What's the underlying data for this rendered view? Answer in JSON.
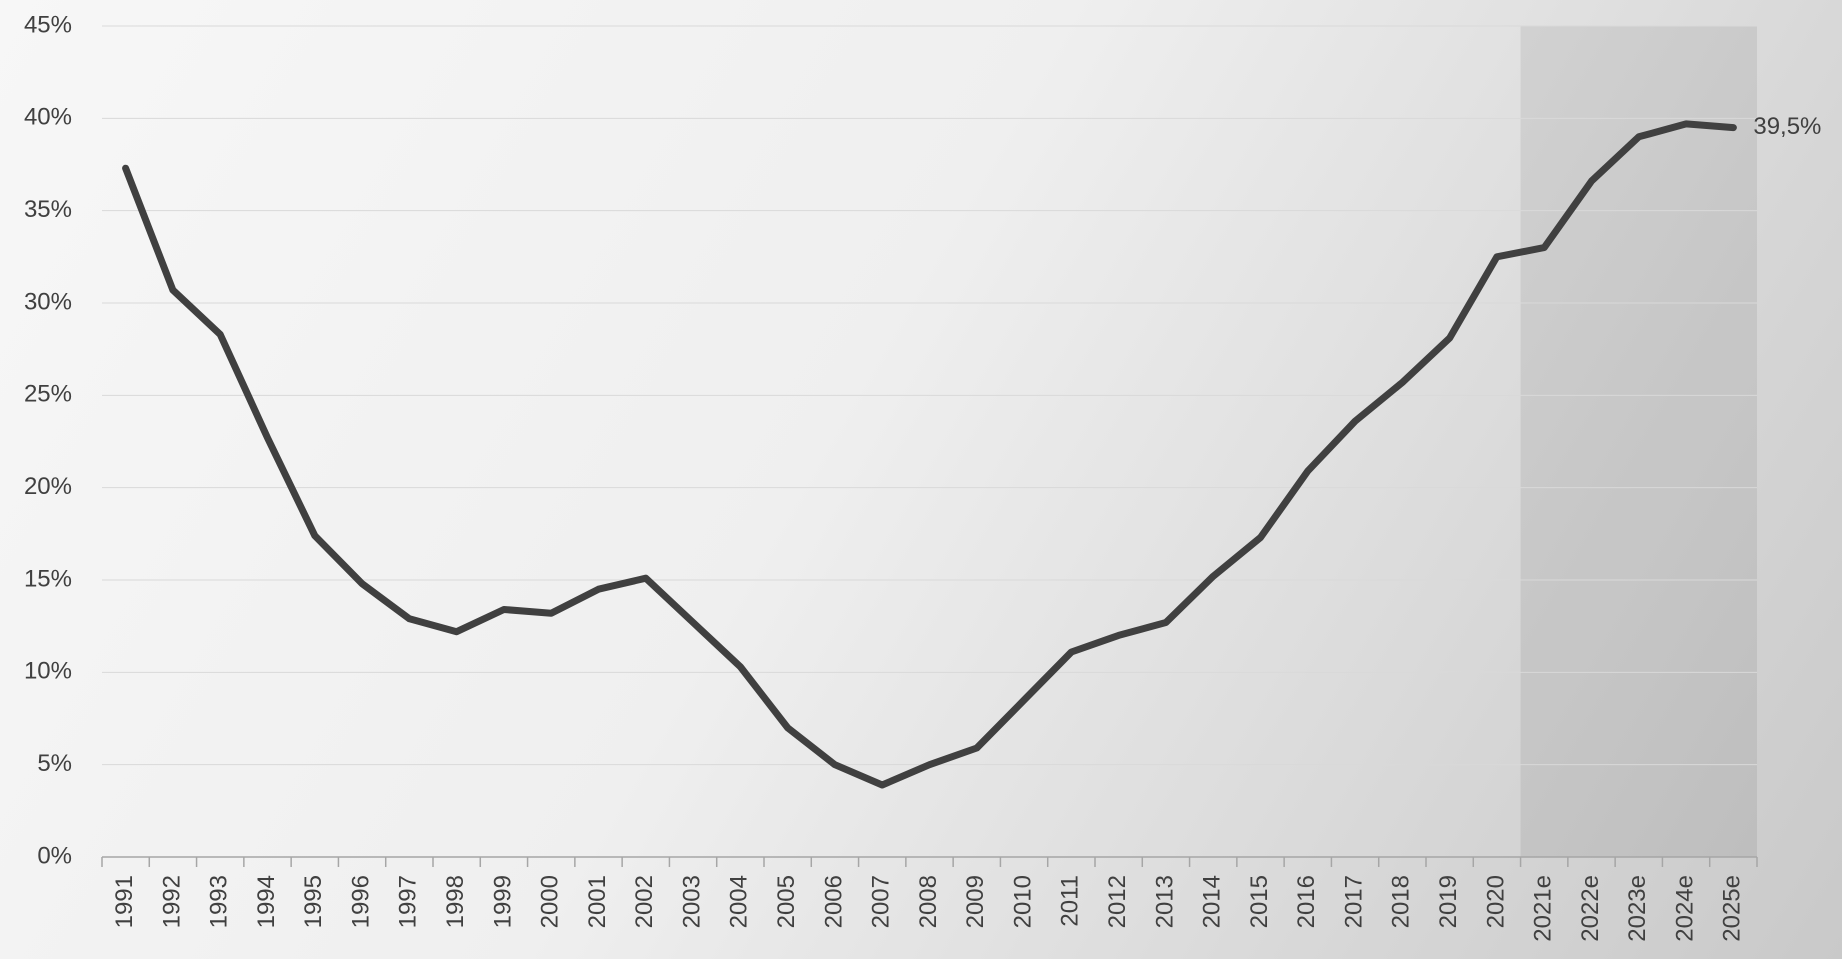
{
  "chart_data": {
    "type": "line",
    "categories": [
      "1991",
      "1992",
      "1993",
      "1994",
      "1995",
      "1996",
      "1997",
      "1998",
      "1999",
      "2000",
      "2001",
      "2002",
      "2003",
      "2004",
      "2005",
      "2006",
      "2007",
      "2008",
      "2009",
      "2010",
      "2011",
      "2012",
      "2013",
      "2014",
      "2015",
      "2016",
      "2017",
      "2018",
      "2019",
      "2020",
      "2021e",
      "2022e",
      "2023e",
      "2024e",
      "2025e"
    ],
    "series": [
      {
        "color": "#404040",
        "values": [
          37.3,
          30.7,
          28.3,
          22.7,
          17.4,
          14.8,
          12.9,
          12.2,
          13.4,
          13.2,
          14.5,
          15.1,
          12.7,
          10.3,
          7.0,
          5.0,
          3.9,
          5.0,
          5.9,
          8.5,
          11.1,
          12.0,
          12.7,
          15.2,
          17.3,
          20.9,
          23.6,
          25.7,
          28.1,
          32.5,
          33.0,
          36.6,
          39.0,
          39.7,
          39.5
        ],
        "value_labels": [
          null,
          null,
          null,
          null,
          null,
          null,
          null,
          null,
          null,
          null,
          null,
          null,
          null,
          null,
          null,
          null,
          null,
          null,
          null,
          null,
          null,
          null,
          null,
          null,
          null,
          null,
          null,
          null,
          null,
          null,
          null,
          null,
          null,
          null,
          "39,5%"
        ]
      }
    ],
    "ylim": [
      0,
      45
    ],
    "yticks": [
      {
        "value": 0,
        "label": "0%"
      },
      {
        "value": 5,
        "label": "5%"
      },
      {
        "value": 10,
        "label": "10%"
      },
      {
        "value": 15,
        "label": "15%"
      },
      {
        "value": 20,
        "label": "20%"
      },
      {
        "value": 25,
        "label": "25%"
      },
      {
        "value": 30,
        "label": "30%"
      },
      {
        "value": 35,
        "label": "35%"
      },
      {
        "value": 40,
        "label": "40%"
      },
      {
        "value": 45,
        "label": "45%"
      }
    ],
    "grid": true
  }
}
